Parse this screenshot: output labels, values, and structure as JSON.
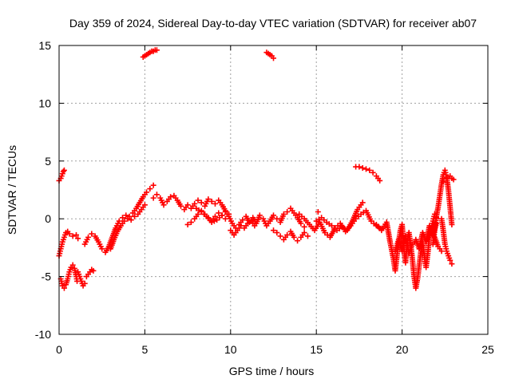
{
  "chart_data": {
    "type": "scatter",
    "title": "Day 359 of 2024, Sidereal Day-to-day VTEC variation (SDTVAR) for receiver ab07",
    "xlabel": "GPS time / hours",
    "ylabel": "SDTVAR / TECUs",
    "xlim": [
      0,
      25
    ],
    "ylim": [
      -10,
      15
    ],
    "xticks": [
      0,
      5,
      10,
      15,
      20,
      25
    ],
    "yticks": [
      -10,
      -5,
      0,
      5,
      10,
      15
    ],
    "xtick_labels": [
      "0",
      "5",
      "10",
      "15",
      "20",
      "25"
    ],
    "ytick_labels": [
      "-10",
      "-5",
      "0",
      "5",
      "10",
      "15"
    ],
    "grid": true,
    "marker": "plus",
    "color": "#ff0000",
    "series": [
      {
        "name": "seg-a1",
        "x": [
          0.0,
          0.1,
          0.15,
          0.2,
          0.25,
          0.3
        ],
        "y": [
          3.3,
          3.5,
          3.7,
          3.9,
          4.1,
          4.2
        ]
      },
      {
        "name": "seg-a2",
        "x": [
          0.0,
          0.1,
          0.2,
          0.3,
          0.4,
          0.5,
          0.6,
          0.8,
          1.0,
          1.1
        ],
        "y": [
          -3.2,
          -2.6,
          -2.0,
          -1.6,
          -1.2,
          -1.1,
          -1.3,
          -1.5,
          -1.4,
          -1.7
        ]
      },
      {
        "name": "seg-a3",
        "x": [
          0.1,
          0.2,
          0.3,
          0.4,
          0.5,
          0.6,
          0.7,
          0.8,
          0.9,
          1.0,
          1.05
        ],
        "y": [
          -5.2,
          -5.8,
          -6.0,
          -5.7,
          -5.2,
          -4.6,
          -4.2,
          -4.0,
          -4.3,
          -5.0,
          -5.4
        ]
      },
      {
        "name": "seg-a4",
        "x": [
          1.1,
          1.2,
          1.3,
          1.4,
          1.5
        ],
        "y": [
          -4.6,
          -5.0,
          -5.4,
          -5.8,
          -5.6
        ]
      },
      {
        "name": "seg-a5",
        "x": [
          1.6,
          1.7,
          1.8,
          1.9,
          2.0
        ],
        "y": [
          -5.0,
          -4.8,
          -4.6,
          -4.4,
          -4.5
        ]
      },
      {
        "name": "seg-b",
        "x": [
          1.5,
          1.7,
          1.9,
          2.1,
          2.3,
          2.5,
          2.7,
          2.9,
          3.1,
          3.3,
          3.5,
          3.7,
          3.9,
          4.1,
          4.3,
          4.5,
          4.7,
          4.9,
          5.1,
          5.3,
          5.5
        ],
        "y": [
          -2.2,
          -1.6,
          -1.3,
          -1.5,
          -2.0,
          -2.6,
          -2.9,
          -2.4,
          -1.6,
          -0.8,
          -0.2,
          0.1,
          0.3,
          0.2,
          0.5,
          0.9,
          1.4,
          1.9,
          2.3,
          2.6,
          2.9
        ]
      },
      {
        "name": "seg-b2",
        "x": [
          3.0,
          3.2,
          3.4,
          3.6,
          3.8,
          4.0,
          4.2,
          4.4,
          4.6,
          4.8,
          5.0
        ],
        "y": [
          -2.6,
          -1.8,
          -1.1,
          -0.6,
          -0.2,
          0.0,
          -0.1,
          0.2,
          0.4,
          0.8,
          1.2
        ]
      },
      {
        "name": "seg-c1",
        "x": [
          4.9,
          5.0,
          5.1,
          5.2,
          5.3,
          5.4,
          5.5,
          5.6,
          5.7
        ],
        "y": [
          14.0,
          14.1,
          14.2,
          14.3,
          14.4,
          14.5,
          14.5,
          14.6,
          14.6
        ]
      },
      {
        "name": "seg-c2",
        "x": [
          12.1,
          12.2,
          12.3,
          12.4,
          12.5
        ],
        "y": [
          14.4,
          14.3,
          14.2,
          14.1,
          13.9
        ]
      },
      {
        "name": "seg-d",
        "x": [
          5.5,
          5.7,
          5.9,
          6.1,
          6.3,
          6.5,
          6.7,
          6.9,
          7.1,
          7.3,
          7.5,
          7.7,
          7.9,
          8.1,
          8.3,
          8.5,
          8.7,
          8.9,
          9.1,
          9.3,
          9.5,
          9.7,
          9.9
        ],
        "y": [
          1.8,
          2.1,
          1.8,
          1.2,
          1.5,
          1.9,
          2.0,
          1.6,
          1.1,
          0.8,
          1.2,
          0.9,
          1.3,
          1.6,
          1.4,
          1.1,
          1.7,
          1.5,
          1.3,
          1.6,
          1.2,
          0.7,
          0.4
        ]
      },
      {
        "name": "seg-d2",
        "x": [
          7.5,
          7.7,
          7.9,
          8.1,
          8.3,
          8.5,
          8.7,
          8.9,
          9.1,
          9.3,
          9.5,
          9.7
        ],
        "y": [
          -0.5,
          -0.3,
          0.0,
          0.4,
          0.7,
          0.4,
          0.1,
          -0.2,
          0.2,
          0.5,
          0.3,
          0.0
        ]
      },
      {
        "name": "seg-d3",
        "x": [
          8.0,
          8.3,
          8.6,
          8.9,
          9.2,
          9.5
        ],
        "y": [
          0.9,
          0.6,
          0.2,
          -0.3,
          -0.1,
          0.3
        ]
      },
      {
        "name": "seg-e",
        "x": [
          9.5,
          9.7,
          9.9,
          10.1,
          10.3,
          10.5,
          10.7,
          10.9,
          11.1,
          11.3,
          11.5,
          11.7,
          11.9,
          12.1,
          12.3,
          12.5,
          12.7,
          12.9,
          13.1,
          13.3,
          13.5,
          13.7,
          13.9,
          14.1,
          14.3
        ],
        "y": [
          0.3,
          0.6,
          0.2,
          -0.4,
          -0.8,
          -0.5,
          -0.1,
          0.2,
          -0.3,
          0.1,
          -0.4,
          0.3,
          0.0,
          -0.6,
          -0.2,
          0.3,
          0.0,
          -0.3,
          0.4,
          0.6,
          0.9,
          0.5,
          0.1,
          -0.4,
          -0.7
        ]
      },
      {
        "name": "seg-e2",
        "x": [
          10.0,
          10.2,
          10.4,
          10.6,
          10.8,
          11.0,
          11.2,
          11.4
        ],
        "y": [
          -1.0,
          -1.4,
          -1.0,
          -0.6,
          -0.8,
          -0.4,
          -0.2,
          -0.6
        ]
      },
      {
        "name": "seg-e3",
        "x": [
          12.5,
          12.7,
          12.9,
          13.1,
          13.3,
          13.5,
          13.7,
          13.9,
          14.1,
          14.3,
          14.5
        ],
        "y": [
          -1.0,
          -1.2,
          -1.5,
          -1.8,
          -1.4,
          -1.1,
          -1.6,
          -1.9,
          -1.6,
          -1.2,
          -1.5
        ]
      },
      {
        "name": "seg-f",
        "x": [
          14.0,
          14.3,
          14.6,
          14.9,
          15.2,
          15.5,
          15.8,
          16.1,
          16.4,
          16.7,
          17.0,
          17.3,
          17.6,
          17.9,
          18.2,
          18.5,
          18.8
        ],
        "y": [
          0.4,
          0.0,
          -0.5,
          -1.0,
          -0.3,
          -1.2,
          -1.6,
          -0.8,
          -0.4,
          -1.1,
          -0.6,
          0.0,
          0.4,
          0.7,
          -0.2,
          -0.6,
          -0.9
        ]
      },
      {
        "name": "seg-f2",
        "x": [
          15.0,
          15.3,
          15.6,
          15.9,
          16.2,
          16.5,
          16.8,
          17.1,
          17.4,
          17.7
        ],
        "y": [
          -0.2,
          0.1,
          -0.3,
          -0.6,
          -1.0,
          -0.7,
          -1.0,
          -0.2,
          0.8,
          1.4
        ]
      },
      {
        "name": "seg-f3",
        "x": [
          15.1
        ],
        "y": [
          0.6
        ]
      },
      {
        "name": "seg-g",
        "x": [
          17.3,
          17.5,
          17.7,
          17.9,
          18.1,
          18.3,
          18.5,
          18.7
        ],
        "y": [
          4.5,
          4.5,
          4.4,
          4.3,
          4.2,
          4.0,
          3.7,
          3.3
        ]
      },
      {
        "name": "seg-h",
        "x": [
          18.5,
          18.8,
          19.1,
          19.3,
          19.5,
          19.6,
          19.7,
          19.8,
          19.9,
          20.0,
          20.1,
          20.2,
          20.3,
          20.4,
          20.5,
          20.6,
          20.7,
          20.8,
          20.9,
          21.0,
          21.1,
          21.2,
          21.3,
          21.4,
          21.5,
          21.6,
          21.7,
          21.8,
          21.9,
          22.0
        ],
        "y": [
          -0.5,
          -1.0,
          -0.3,
          -2.0,
          -3.5,
          -4.5,
          -3.2,
          -2.0,
          -1.0,
          -0.5,
          -2.5,
          -3.8,
          -2.0,
          -1.2,
          -2.2,
          -3.5,
          -5.0,
          -6.0,
          -5.2,
          -4.0,
          -2.8,
          -2.0,
          -3.2,
          -4.2,
          -3.0,
          -1.5,
          -0.8,
          -0.2,
          0.4,
          0.1
        ]
      },
      {
        "name": "seg-h2",
        "x": [
          19.6,
          19.8,
          20.0,
          20.2,
          20.4,
          20.6,
          20.8,
          21.0,
          21.2,
          21.4,
          21.6,
          21.8,
          22.0
        ],
        "y": [
          -2.8,
          -1.8,
          -2.8,
          -1.5,
          -3.0,
          -2.2,
          -1.8,
          -2.6,
          -1.2,
          -2.0,
          -0.6,
          -1.4,
          -0.4
        ]
      },
      {
        "name": "seg-i",
        "x": [
          21.8,
          21.9,
          22.0,
          22.1,
          22.2,
          22.3,
          22.4,
          22.5,
          22.6,
          22.7,
          22.8,
          22.9
        ],
        "y": [
          -2.2,
          -1.0,
          0.2,
          1.0,
          2.0,
          3.0,
          3.8,
          4.2,
          3.6,
          2.5,
          1.0,
          -0.5
        ]
      },
      {
        "name": "seg-i2",
        "x": [
          22.3,
          22.4,
          22.5,
          22.6,
          22.7,
          22.8,
          22.9
        ],
        "y": [
          0.0,
          -1.0,
          -2.2,
          -2.8,
          -3.2,
          -3.6,
          -3.9
        ]
      },
      {
        "name": "seg-i3",
        "x": [
          22.4,
          22.6,
          22.8,
          22.9,
          23.0
        ],
        "y": [
          3.2,
          3.5,
          3.7,
          3.5,
          3.4
        ]
      },
      {
        "name": "seg-i4",
        "x": [
          21.5,
          21.7,
          21.9,
          22.1,
          22.3
        ],
        "y": [
          -1.8,
          -1.0,
          -1.6,
          -2.4,
          -2.8
        ]
      }
    ]
  }
}
